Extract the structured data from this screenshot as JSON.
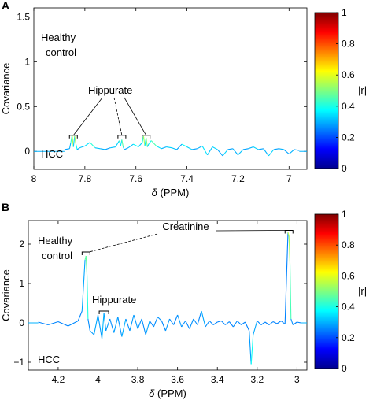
{
  "chart_data": [
    {
      "panel_label": "A",
      "type": "line",
      "xlabel_prefix": "δ",
      "xlabel_unit": "(PPM)",
      "ylabel": "Covariance",
      "xlim": [
        8,
        6.93
      ],
      "ylim": [
        -0.2,
        1.6
      ],
      "x_ticks": [
        8,
        7.8,
        7.6,
        7.4,
        7.2,
        7
      ],
      "y_ticks": [
        0,
        0.5,
        1,
        1.5
      ],
      "group_top": [
        "Healthy",
        "control"
      ],
      "group_bottom": "HCC",
      "annotations": [
        {
          "text": "Hippurate",
          "targets": [
            7.845,
            7.655,
            7.56
          ],
          "dashed": [
            false,
            true,
            false
          ]
        }
      ],
      "colorbar": {
        "label": "|r|",
        "ticks": [
          0,
          0.2,
          0.4,
          0.6,
          0.8,
          1
        ]
      },
      "series": [
        {
          "x": [
            7.88,
            7.86,
            7.855,
            7.85,
            7.845,
            7.84,
            7.835,
            7.83,
            7.82,
            7.8,
            7.78,
            7.76,
            7.74,
            7.72,
            7.7,
            7.68,
            7.665,
            7.66,
            7.655,
            7.65,
            7.645,
            7.63,
            7.61,
            7.59,
            7.575,
            7.57,
            7.565,
            7.56,
            7.555,
            7.55,
            7.54,
            7.52,
            7.5,
            7.48,
            7.46,
            7.44,
            7.42,
            7.4,
            7.38,
            7.36,
            7.34,
            7.32,
            7.3,
            7.28,
            7.26,
            7.24,
            7.22,
            7.2,
            7.18,
            7.16,
            7.14,
            7.12,
            7.1,
            7.08,
            7.06,
            7.04,
            7.02,
            7.0,
            6.98,
            6.96
          ],
          "y": [
            0.02,
            0.03,
            0.1,
            0.18,
            0.05,
            0.17,
            0.08,
            0.02,
            0.04,
            0.06,
            0.1,
            0.04,
            0.03,
            0.02,
            0.04,
            0.05,
            0.12,
            0.06,
            0.13,
            0.05,
            0.02,
            0.04,
            0.08,
            0.05,
            0.1,
            0.17,
            0.06,
            0.15,
            0.05,
            0.08,
            0.12,
            0.06,
            0.03,
            0.05,
            0.04,
            0.02,
            0.08,
            0.05,
            0.02,
            0.03,
            0.06,
            -0.04,
            0.05,
            0.02,
            -0.05,
            0.02,
            0.03,
            -0.04,
            0.02,
            0.03,
            0.05,
            0.02,
            0.03,
            -0.05,
            0.02,
            0.03,
            0.02,
            -0.03,
            0.02,
            0.01
          ]
        }
      ]
    },
    {
      "panel_label": "B",
      "type": "line",
      "xlabel_prefix": "δ",
      "xlabel_unit": "(PPM)",
      "ylabel": "Covariance",
      "xlim": [
        4.35,
        2.95
      ],
      "ylim": [
        -1.2,
        2.6
      ],
      "x_ticks": [
        4.2,
        4,
        3.8,
        3.6,
        3.4,
        3.2,
        3
      ],
      "y_ticks": [
        -1,
        0,
        1,
        2
      ],
      "group_top": [
        "Healthy",
        "control"
      ],
      "group_bottom": "HCC",
      "annotations": [
        {
          "text": "Creatinine",
          "targets": [
            4.06,
            3.04
          ],
          "dashed": [
            true,
            false
          ]
        },
        {
          "text": "Hippurate",
          "targets": [
            3.97
          ],
          "dashed": [
            false
          ]
        }
      ],
      "colorbar": {
        "label": "|r|",
        "ticks": [
          0,
          0.2,
          0.4,
          0.6,
          0.8,
          1
        ]
      },
      "series": [
        {
          "x": [
            4.3,
            4.25,
            4.2,
            4.15,
            4.1,
            4.08,
            4.065,
            4.06,
            4.055,
            4.05,
            4.04,
            4.02,
            4.0,
            3.98,
            3.97,
            3.96,
            3.94,
            3.92,
            3.9,
            3.88,
            3.86,
            3.84,
            3.82,
            3.8,
            3.78,
            3.76,
            3.74,
            3.72,
            3.7,
            3.68,
            3.66,
            3.64,
            3.62,
            3.6,
            3.58,
            3.56,
            3.54,
            3.52,
            3.5,
            3.48,
            3.46,
            3.44,
            3.42,
            3.4,
            3.38,
            3.36,
            3.34,
            3.32,
            3.3,
            3.28,
            3.26,
            3.24,
            3.23,
            3.22,
            3.2,
            3.18,
            3.16,
            3.14,
            3.12,
            3.1,
            3.08,
            3.06,
            3.045,
            3.04,
            3.035,
            3.03,
            3.02,
            3.0,
            2.98
          ],
          "y": [
            0.02,
            -0.05,
            0.03,
            -0.08,
            0.05,
            0.3,
            1.6,
            1.7,
            1.2,
            0.1,
            -0.2,
            -0.3,
            0.2,
            -0.4,
            0.25,
            -0.2,
            0.1,
            -0.25,
            0.15,
            -0.35,
            0.1,
            -0.2,
            0.2,
            -0.15,
            0.1,
            -0.3,
            0.05,
            -0.1,
            0.15,
            0.05,
            -0.2,
            0.1,
            -0.05,
            0.2,
            -0.1,
            0.05,
            -0.15,
            0.1,
            -0.05,
            0.3,
            -0.1,
            0.05,
            -0.05,
            0.02,
            0.05,
            -0.05,
            0.03,
            -0.1,
            0.05,
            -0.05,
            0.02,
            -0.2,
            -1.05,
            -0.3,
            0.05,
            -0.05,
            0.02,
            -0.05,
            0.03,
            -0.02,
            0.05,
            -0.03,
            2.3,
            2.2,
            1.5,
            0.1,
            -0.05,
            0.02,
            0.0
          ]
        }
      ]
    }
  ]
}
